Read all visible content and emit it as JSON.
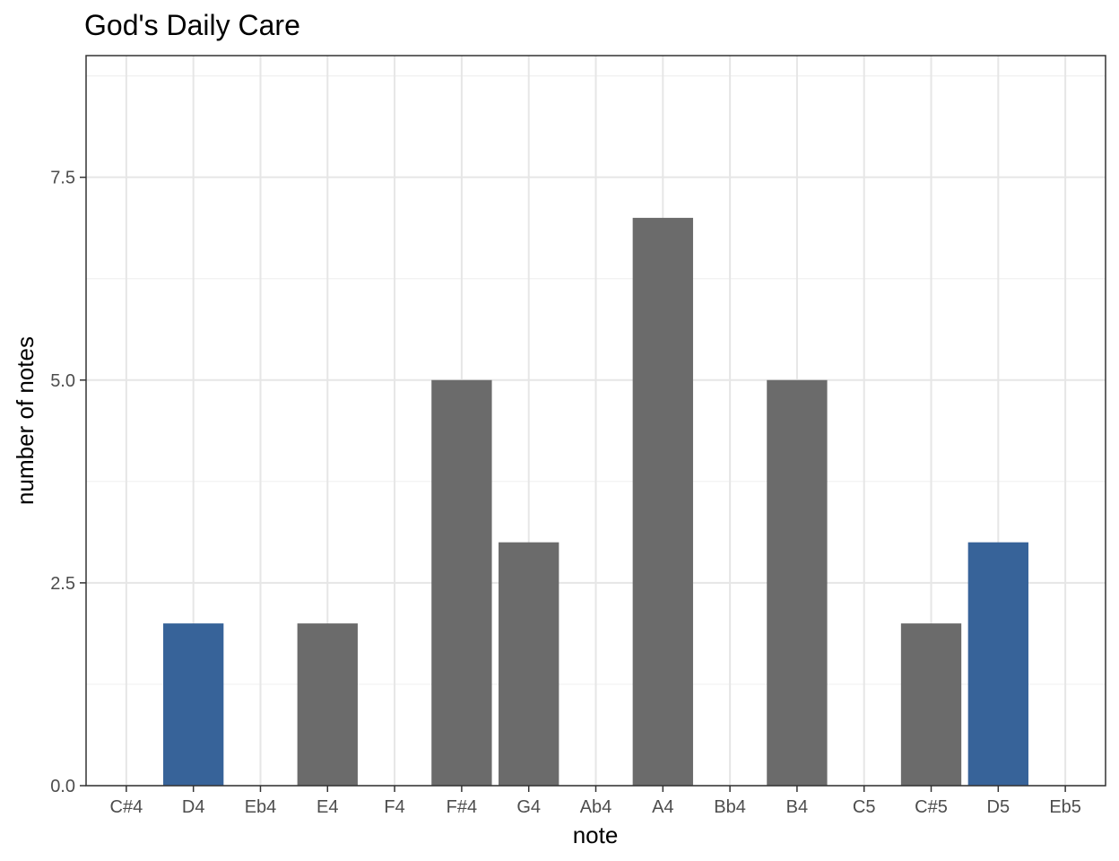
{
  "chart_data": {
    "type": "bar",
    "title": "God's Daily Care",
    "xlabel": "note",
    "ylabel": "number of notes",
    "categories": [
      "C#4",
      "D4",
      "Eb4",
      "E4",
      "F4",
      "F#4",
      "G4",
      "Ab4",
      "A4",
      "Bb4",
      "B4",
      "C5",
      "C#5",
      "D5",
      "Eb5"
    ],
    "values": [
      0,
      2,
      0,
      2,
      0,
      5,
      3,
      0,
      7,
      0,
      5,
      0,
      2,
      3,
      0
    ],
    "highlight": [
      "D4",
      "D5"
    ],
    "y_ticks": [
      0,
      2.5,
      5,
      7.5
    ],
    "y_tick_labels": [
      "0.0",
      "2.5",
      "5.0",
      "7.5"
    ],
    "ylim": [
      0,
      9
    ],
    "grid": true,
    "legend": "none",
    "colors": {
      "bar": "#6b6b6b",
      "highlight": "#376399"
    }
  }
}
